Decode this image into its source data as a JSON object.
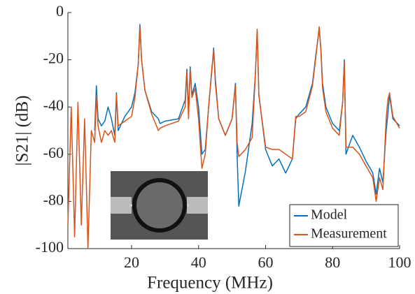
{
  "chart_data": {
    "type": "line",
    "xlabel": "Frequency (MHz)",
    "ylabel": "|S21| (dB)",
    "x": [
      1,
      2,
      3,
      4,
      5,
      6,
      7,
      8,
      9,
      9.5,
      10,
      11,
      12,
      13,
      14,
      15,
      15.5,
      16,
      18,
      20,
      21,
      22,
      22.5,
      23,
      24,
      26,
      28,
      28.5,
      30,
      34,
      36,
      36.5,
      37,
      37.5,
      38,
      39,
      40,
      41,
      42,
      43,
      44,
      44.5,
      45,
      46,
      48,
      50,
      51,
      51.5,
      52,
      54,
      56,
      57,
      57.5,
      58,
      60,
      62,
      64,
      66,
      68,
      69,
      70,
      72,
      74,
      75,
      76,
      76.5,
      77,
      78,
      80,
      82,
      83,
      83.5,
      84,
      86,
      88,
      90,
      92,
      93,
      94,
      95,
      96,
      96.5,
      97,
      98,
      100
    ],
    "series": [
      {
        "name": "Model",
        "color": "#0072bd",
        "values": [
          null,
          null,
          null,
          null,
          null,
          null,
          null,
          null,
          -50,
          -31,
          -45,
          -48,
          -46,
          -40,
          -45,
          -52,
          -34,
          -50,
          -44,
          -40,
          -34,
          -22,
          -5,
          -20,
          -33,
          -42,
          -45,
          -47,
          -46,
          -45,
          -37,
          -24,
          -42,
          -23,
          -35,
          -30,
          -40,
          -60,
          -58,
          -40,
          -24,
          -15,
          -28,
          -45,
          -52,
          -45,
          -30,
          -60,
          -82,
          -67,
          -47,
          -25,
          -8,
          -35,
          -58,
          -65,
          -62,
          -68,
          -62,
          -45,
          -43,
          -40,
          -30,
          -18,
          -7,
          -15,
          -30,
          -40,
          -47,
          -50,
          -38,
          -20,
          -60,
          -52,
          -57,
          -63,
          -68,
          -77,
          -66,
          -72,
          -50,
          -43,
          -35,
          -45,
          -48
        ]
      },
      {
        "name": "Measurement",
        "color": "#d95319",
        "values": [
          -90,
          -40,
          -95,
          -38,
          -90,
          -45,
          -100,
          -50,
          -55,
          -35,
          -48,
          -55,
          -50,
          -52,
          -50,
          -55,
          -35,
          -48,
          -46,
          -44,
          -36,
          -22,
          -6,
          -20,
          -33,
          -43,
          -50,
          -49,
          -48,
          -46,
          -40,
          -25,
          -45,
          -24,
          -36,
          -32,
          -45,
          -66,
          -60,
          -40,
          -23,
          -16,
          -30,
          -45,
          -52,
          -45,
          -31,
          -55,
          -61,
          -58,
          -53,
          -25,
          -7,
          -35,
          -57,
          -58,
          -58,
          -60,
          -62,
          -44,
          -44,
          -42,
          -31,
          -19,
          -6,
          -16,
          -32,
          -42,
          -49,
          -52,
          -38,
          -21,
          -57,
          -57,
          -60,
          -65,
          -70,
          -80,
          -70,
          -75,
          -45,
          -37,
          -34,
          -44,
          -49
        ]
      }
    ],
    "xlim": [
      1,
      100
    ],
    "xticks": [
      20,
      40,
      60,
      80,
      100
    ],
    "ylim": [
      -100,
      0
    ],
    "yticks": [
      -100,
      -80,
      -60,
      -40,
      -20,
      0
    ],
    "legend": "lower right"
  }
}
